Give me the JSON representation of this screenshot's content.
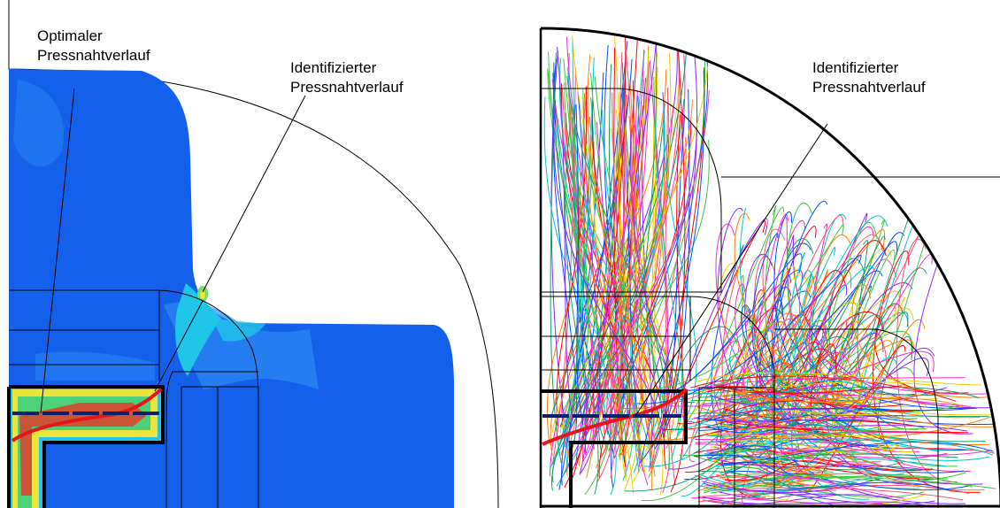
{
  "left_panel": {
    "label_optimal_line1": "Optimaler",
    "label_optimal_line2": "Pressnahtverlauf",
    "label_identified_line1": "Identifizierter",
    "label_identified_line2": "Pressnahtverlauf"
  },
  "right_panel": {
    "label_identified_line1": "Identifizierter",
    "label_identified_line2": "Pressnahtverlauf"
  },
  "colors": {
    "fe_blue": "#1560ea",
    "fe_light_blue": "#2b8cf5",
    "fe_cyan": "#21c5e8",
    "seam_identified": "#e8141c",
    "seam_optimal": "#0a1f6e",
    "contour": "#000000"
  }
}
